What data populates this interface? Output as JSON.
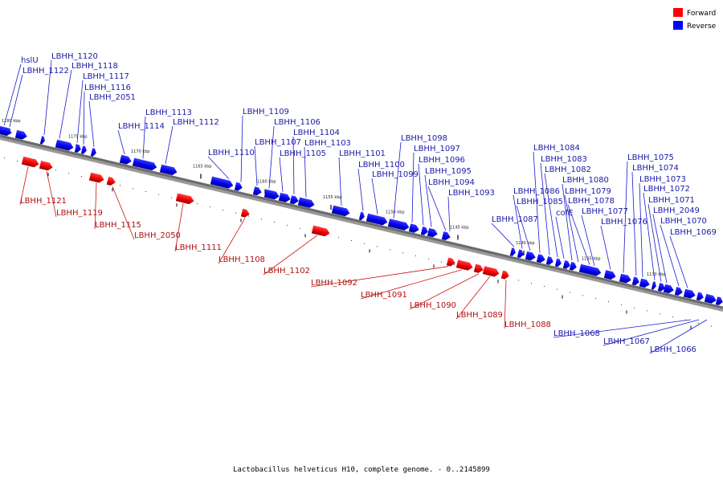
{
  "legend": [
    {
      "label": "Forward",
      "color": "#ff0000"
    },
    {
      "label": "Reverse",
      "color": "#0000ff"
    }
  ],
  "caption": "Lactobacillus helveticus H10, complete genome. - 0..2145899",
  "ticks": [
    "1180 kbp",
    "1175 kbp",
    "1170 kbp",
    "1165 kbp",
    "1160 kbp",
    "1155 kbp",
    "1150 kbp",
    "1145 kbp",
    "1140 kbp",
    "1135 kbp",
    "1130 kbp"
  ],
  "reverse_genes": [
    "hslU",
    "LBHH_1122",
    "LBHH_1120",
    "LBHH_1118",
    "LBHH_1117",
    "LBHH_1116",
    "LBHH_2051",
    "LBHH_1114",
    "LBHH_1113",
    "LBHH_1112",
    "LBHH_1110",
    "LBHH_1109",
    "LBHH_1107",
    "LBHH_1106",
    "LBHH_1105",
    "LBHH_1104",
    "LBHH_1103",
    "LBHH_1101",
    "LBHH_1100",
    "LBHH_1099",
    "LBHH_1098",
    "LBHH_1097",
    "LBHH_1096",
    "LBHH_1095",
    "LBHH_1094",
    "LBHH_1093",
    "LBHH_1087",
    "LBHH_1086",
    "LBHH_1085",
    "LBHH_1084",
    "LBHH_1083",
    "LBHH_1082",
    "cofE",
    "LBHH_1080",
    "LBHH_1079",
    "LBHH_1078",
    "LBHH_1077",
    "LBHH_1076",
    "LBHH_1075",
    "LBHH_1074",
    "LBHH_1073",
    "LBHH_1072",
    "LBHH_1071",
    "LBHH_2049",
    "LBHH_1070",
    "LBHH_1069"
  ],
  "forward_genes": [
    "LBHH_1121",
    "LBHH_1119",
    "LBHH_1115",
    "LBHH_2050",
    "LBHH_1111",
    "LBHH_1108",
    "LBHH_1102",
    "LBHH_1092",
    "LBHH_1091",
    "LBHH_1090",
    "LBHH_1089",
    "LBHH_1088"
  ],
  "small_genes": [
    "LBHH_1068",
    "LBHH_1067",
    "LBHH_1066"
  ]
}
